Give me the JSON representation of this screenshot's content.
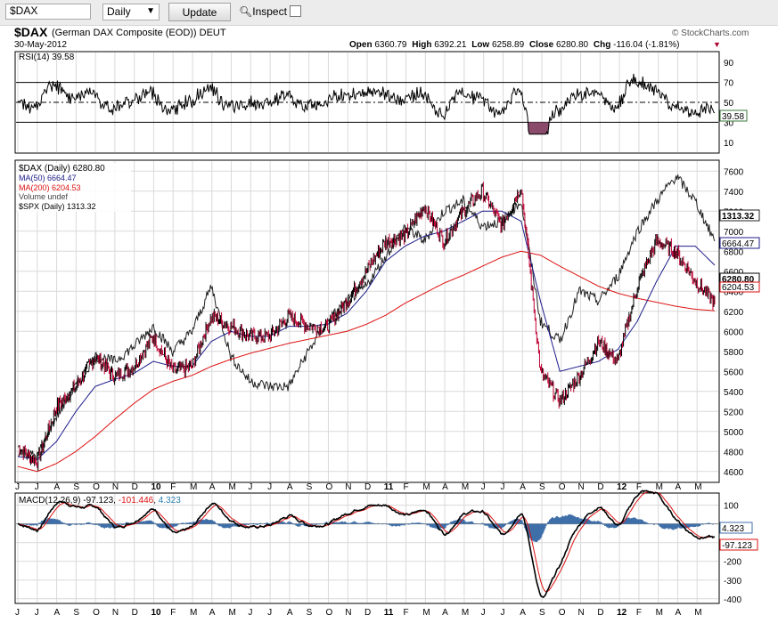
{
  "toolbar": {
    "symbol_value": "$DAX",
    "period_value": "Daily",
    "update_label": "Update",
    "inspect_label": "Inspect"
  },
  "header": {
    "symbol": "$DAX",
    "name": "(German DAX Composite (EOD)) DEUT",
    "date": "30-May-2012",
    "copyright": "© StockCharts.com",
    "open_label": "Open",
    "open": "6360.79",
    "high_label": "High",
    "high": "6392.21",
    "low_label": "Low",
    "low": "6258.89",
    "close_label": "Close",
    "close": "6280.80",
    "chg_label": "Chg",
    "chg": "-116.04 (-1.81%)"
  },
  "colors": {
    "price": "#000000",
    "down": "#c00032",
    "ma50": "#1c1c8a",
    "ma200": "#dd1111",
    "spx": "#222222",
    "macd_signal": "#dd1111",
    "histogram": "#3f6fa8",
    "rsi_fill": "#8a4a6a",
    "grid": "#d9d9d9"
  },
  "rsi": {
    "label": "RSI(14) 39.58",
    "ticks": [
      "90",
      "70",
      "50",
      "30",
      "10"
    ],
    "last": "39.58"
  },
  "price": {
    "legend": [
      "$DAX (Daily) 6280.80",
      "MA(50) 6664.47",
      "MA(200) 6204.53",
      "Volume undef",
      "$SPX (Daily) 1313.32"
    ],
    "ticks": [
      "7600",
      "7400",
      "7200",
      "7000",
      "6800",
      "6600",
      "6400",
      "6200",
      "6000",
      "5800",
      "5600",
      "5400",
      "5200",
      "5000",
      "4800",
      "4600"
    ],
    "tags": {
      "spx": "1313.32",
      "ma50": "6664.47",
      "close": "6280.80",
      "ma200": "6204.53"
    }
  },
  "macd": {
    "label_prefix": "MACD(12,26,9)",
    "macd_value": "-97.123",
    "signal_value": "-101.446",
    "hist_value": "4.323",
    "ticks": [
      "100",
      "-100",
      "-200",
      "-300",
      "-400"
    ],
    "tags": {
      "hist": "4.323",
      "macd": "-97.123"
    }
  },
  "xaxis": {
    "months": [
      "J",
      "J",
      "A",
      "S",
      "O",
      "N",
      "D",
      "10",
      "F",
      "M",
      "A",
      "M",
      "J",
      "J",
      "A",
      "S",
      "O",
      "N",
      "D",
      "11",
      "F",
      "M",
      "A",
      "M",
      "J",
      "J",
      "A",
      "S",
      "O",
      "N",
      "D",
      "12",
      "F",
      "M",
      "A",
      "M"
    ]
  },
  "chart_data": {
    "type": "line",
    "title": "$DAX (German DAX Composite (EOD)) DEUT — Daily",
    "date": "30-May-2012",
    "x_range": [
      "Jun 2009",
      "May 2012"
    ],
    "ylim": [
      4500,
      7700
    ],
    "series": [
      {
        "name": "$DAX (Daily)",
        "last": 6280.8,
        "monthly_close": [
          4850,
          4700,
          5250,
          5450,
          5750,
          5550,
          5650,
          5950,
          5600,
          5650,
          6150,
          6050,
          5950,
          5950,
          6150,
          6050,
          6050,
          6300,
          6600,
          6900,
          6950,
          7250,
          6900,
          7200,
          7400,
          7050,
          7450,
          5600,
          5300,
          5550,
          5900,
          5700,
          6450,
          6900,
          6800,
          6500,
          6280
        ]
      },
      {
        "name": "MA(50)",
        "last": 6664.47,
        "monthly_close": [
          4750,
          4720,
          4900,
          5200,
          5450,
          5520,
          5580,
          5700,
          5650,
          5650,
          5900,
          6000,
          5950,
          5950,
          6050,
          6050,
          6070,
          6180,
          6400,
          6700,
          6850,
          6950,
          7000,
          7100,
          7200,
          7200,
          7100,
          6300,
          5600,
          5650,
          5700,
          5820,
          6100,
          6500,
          6850,
          6850,
          6660
        ]
      },
      {
        "name": "MA(200)",
        "last": 6204.53,
        "monthly_close": [
          4650,
          4600,
          4680,
          4800,
          4950,
          5120,
          5280,
          5420,
          5500,
          5560,
          5650,
          5720,
          5780,
          5830,
          5880,
          5920,
          5960,
          6000,
          6070,
          6160,
          6280,
          6380,
          6480,
          6560,
          6650,
          6740,
          6800,
          6760,
          6650,
          6550,
          6450,
          6380,
          6330,
          6290,
          6250,
          6220,
          6205
        ]
      },
      {
        "name": "$SPX (Daily)",
        "last": 1313.32,
        "scaled_monthly": [
          4800,
          4750,
          5150,
          5450,
          5750,
          5700,
          5850,
          6050,
          5800,
          6000,
          6450,
          5750,
          5500,
          5450,
          5450,
          5800,
          6100,
          6300,
          6450,
          6750,
          7050,
          6900,
          7200,
          7300,
          7050,
          7100,
          7300,
          6100,
          5900,
          6400,
          6300,
          6550,
          7000,
          7300,
          7550,
          7300,
          6900
        ]
      }
    ],
    "rsi": {
      "name": "RSI(14)",
      "last": 39.58,
      "ylim": [
        0,
        100
      ],
      "levels": [
        30,
        50,
        70
      ]
    },
    "macd": {
      "name": "MACD(12,26,9)",
      "macd_last": -97.123,
      "signal_last": -101.446,
      "histogram_last": 4.323,
      "ylim": [
        -420,
        160
      ]
    }
  }
}
